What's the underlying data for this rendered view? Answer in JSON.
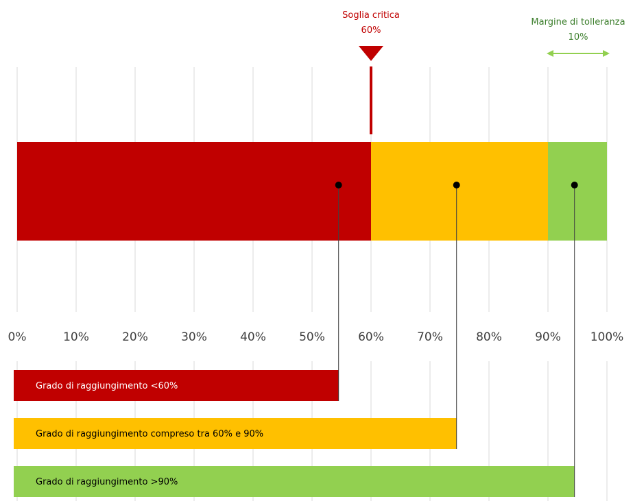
{
  "chart_data": {
    "type": "bar",
    "orientation": "horizontal",
    "stacked": true,
    "x_ticks": [
      "0%",
      "10%",
      "20%",
      "30%",
      "40%",
      "50%",
      "60%",
      "70%",
      "80%",
      "90%",
      "100%"
    ],
    "xlim": [
      0,
      100
    ],
    "grid": true,
    "segments": [
      {
        "from": 0,
        "to": 60,
        "color": "#c00000"
      },
      {
        "from": 60,
        "to": 90,
        "color": "#ffc000"
      },
      {
        "from": 90,
        "to": 100,
        "color": "#92d050"
      }
    ],
    "markers": [
      {
        "value": 54.5,
        "color": "#000000"
      },
      {
        "value": 74.5,
        "color": "#000000"
      },
      {
        "value": 94.5,
        "color": "#000000"
      }
    ],
    "threshold": {
      "title": "Soglia critica",
      "value_label": "60%",
      "value": 60,
      "color": "#c00000"
    },
    "tolerance": {
      "title": "Margine di tolleranza",
      "value_label": "10%",
      "from": 90,
      "to": 100,
      "color": "#92d050",
      "text_color": "#3a7d2a"
    },
    "legend": [
      {
        "label": "Grado di raggiungimento <60%",
        "color": "#c00000",
        "text_color": "#ffffff",
        "end": 54.5
      },
      {
        "label": "Grado di raggiungimento compreso tra 60% e 90%",
        "color": "#ffc000",
        "text_color": "#000000",
        "end": 74.5
      },
      {
        "label": "Grado di raggiungimento >90%",
        "color": "#92d050",
        "text_color": "#000000",
        "end": 94.5
      }
    ]
  }
}
